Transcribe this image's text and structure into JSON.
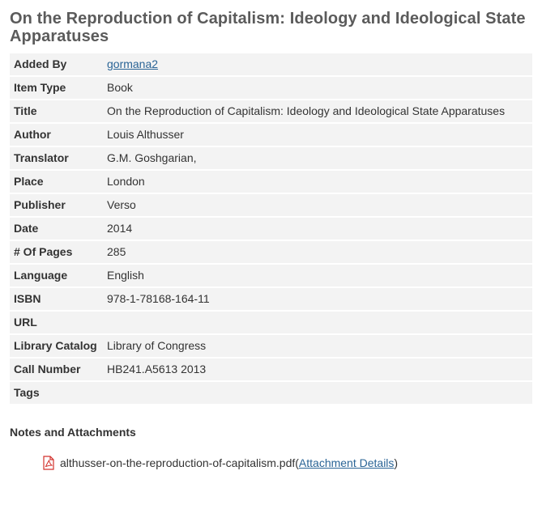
{
  "page": {
    "title": "On the Reproduction of Capitalism: Ideology and Ideological State Apparatuses"
  },
  "fields": [
    {
      "label": "Added By",
      "value": "gormana2",
      "is_link": true
    },
    {
      "label": "Item Type",
      "value": "Book"
    },
    {
      "label": "Title",
      "value": "On the Reproduction of Capitalism: Ideology and Ideological State Apparatuses"
    },
    {
      "label": "Author",
      "value": "Louis Althusser"
    },
    {
      "label": "Translator",
      "value": "G.M. Goshgarian,"
    },
    {
      "label": "Place",
      "value": "London"
    },
    {
      "label": "Publisher",
      "value": "Verso"
    },
    {
      "label": "Date",
      "value": "2014"
    },
    {
      "label": "# Of Pages",
      "value": "285"
    },
    {
      "label": "Language",
      "value": "English"
    },
    {
      "label": "ISBN",
      "value": "978-1-78168-164-11"
    },
    {
      "label": "URL",
      "value": ""
    },
    {
      "label": "Library Catalog",
      "value": "Library of Congress"
    },
    {
      "label": "Call Number",
      "value": "HB241.A5613 2013"
    },
    {
      "label": "Tags",
      "value": ""
    }
  ],
  "notes": {
    "heading": "Notes and Attachments",
    "attachments": [
      {
        "icon": "pdf-icon",
        "filename": "althusser-on-the-reproduction-of-capitalism.pdf",
        "paren_open": " (",
        "link_label": "Attachment Details",
        "paren_close": ")"
      }
    ]
  },
  "colors": {
    "title": "#5b5b5b",
    "row_background": "#f3f3f3",
    "link": "#2a6496",
    "pdf_icon": "#d2322d"
  }
}
